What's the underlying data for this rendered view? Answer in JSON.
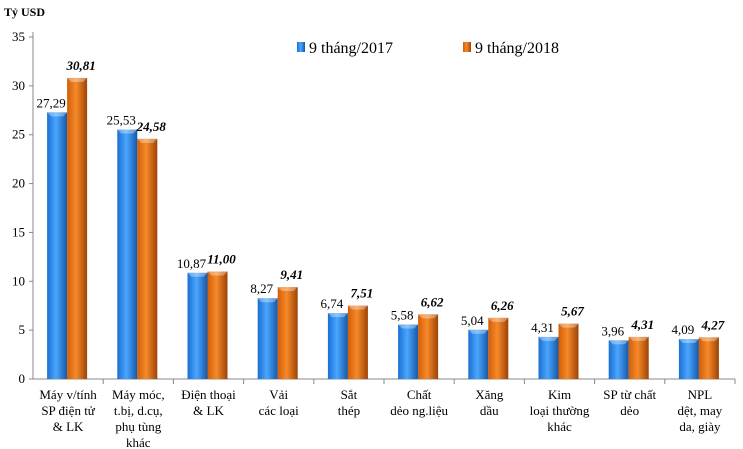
{
  "chart_data": {
    "type": "bar",
    "ylabel": "Tỷ USD",
    "ylim": [
      0,
      35
    ],
    "yticks": [
      "0",
      "5",
      "10",
      "15",
      "20",
      "25",
      "30",
      "35"
    ],
    "grid": false,
    "legend_position": "top-center",
    "categories": [
      [
        "Máy v/tính",
        "SP điện tử",
        "& LK"
      ],
      [
        "Máy móc,",
        "t.bị, d.cụ,",
        "phụ tùng",
        "khác"
      ],
      [
        "Điện thoại",
        "& LK"
      ],
      [
        "Vải",
        "các loại"
      ],
      [
        "Sắt",
        "thép"
      ],
      [
        "Chất",
        "dẻo ng.liệu"
      ],
      [
        "Xăng",
        "dầu"
      ],
      [
        "Kim",
        "loại thường",
        "khác"
      ],
      [
        "SP từ chất",
        "dẻo"
      ],
      [
        "NPL",
        "dệt, may",
        "da, giày"
      ]
    ],
    "series": [
      {
        "name": "9 tháng/2017",
        "color": "#2f8fe8",
        "values": [
          27.29,
          25.53,
          10.87,
          8.27,
          6.74,
          5.58,
          5.04,
          4.31,
          3.96,
          4.09
        ],
        "labels": [
          "27,29",
          "25,53",
          "10,87",
          "8,27",
          "6,74",
          "5,58",
          "5,04",
          "4,31",
          "3,96",
          "4,09"
        ]
      },
      {
        "name": "9 tháng/2018",
        "color": "#f07814",
        "values": [
          30.81,
          24.58,
          11.0,
          9.41,
          7.51,
          6.62,
          6.26,
          5.67,
          4.31,
          4.27
        ],
        "labels": [
          "30,81",
          "24,58",
          "11,00",
          "9,41",
          "7,51",
          "6,62",
          "6,26",
          "5,67",
          "4,31",
          "4,27"
        ]
      }
    ]
  }
}
